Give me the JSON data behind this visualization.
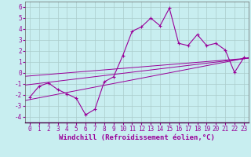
{
  "title": "",
  "xlabel": "Windchill (Refroidissement éolien,°C)",
  "ylabel": "",
  "bg_color": "#c8eef0",
  "line_color": "#990099",
  "grid_color": "#aacccc",
  "xlim": [
    -0.5,
    23.5
  ],
  "ylim": [
    -4.5,
    6.5
  ],
  "xticks": [
    0,
    1,
    2,
    3,
    4,
    5,
    6,
    7,
    8,
    9,
    10,
    11,
    12,
    13,
    14,
    15,
    16,
    17,
    18,
    19,
    20,
    21,
    22,
    23
  ],
  "yticks": [
    -4,
    -3,
    -2,
    -1,
    0,
    1,
    2,
    3,
    4,
    5,
    6
  ],
  "scatter_x": [
    0,
    1,
    2,
    3,
    4,
    5,
    6,
    7,
    8,
    9,
    10,
    11,
    12,
    13,
    14,
    15,
    16,
    17,
    18,
    19,
    20,
    21,
    22,
    23
  ],
  "scatter_y": [
    -2.2,
    -1.2,
    -0.9,
    -1.5,
    -1.9,
    -2.3,
    -3.8,
    -3.3,
    -0.8,
    -0.35,
    1.6,
    3.8,
    4.2,
    5.0,
    4.3,
    5.9,
    2.7,
    2.5,
    3.5,
    2.5,
    2.7,
    2.1,
    0.05,
    1.4
  ],
  "reg_lines": [
    [
      -2.5,
      1.4
    ],
    [
      -1.1,
      1.35
    ],
    [
      -0.3,
      1.35
    ]
  ],
  "marker_size": 3,
  "line_width": 0.8,
  "xlabel_fontsize": 6.5,
  "tick_fontsize": 5.5,
  "spine_color": "#666666"
}
